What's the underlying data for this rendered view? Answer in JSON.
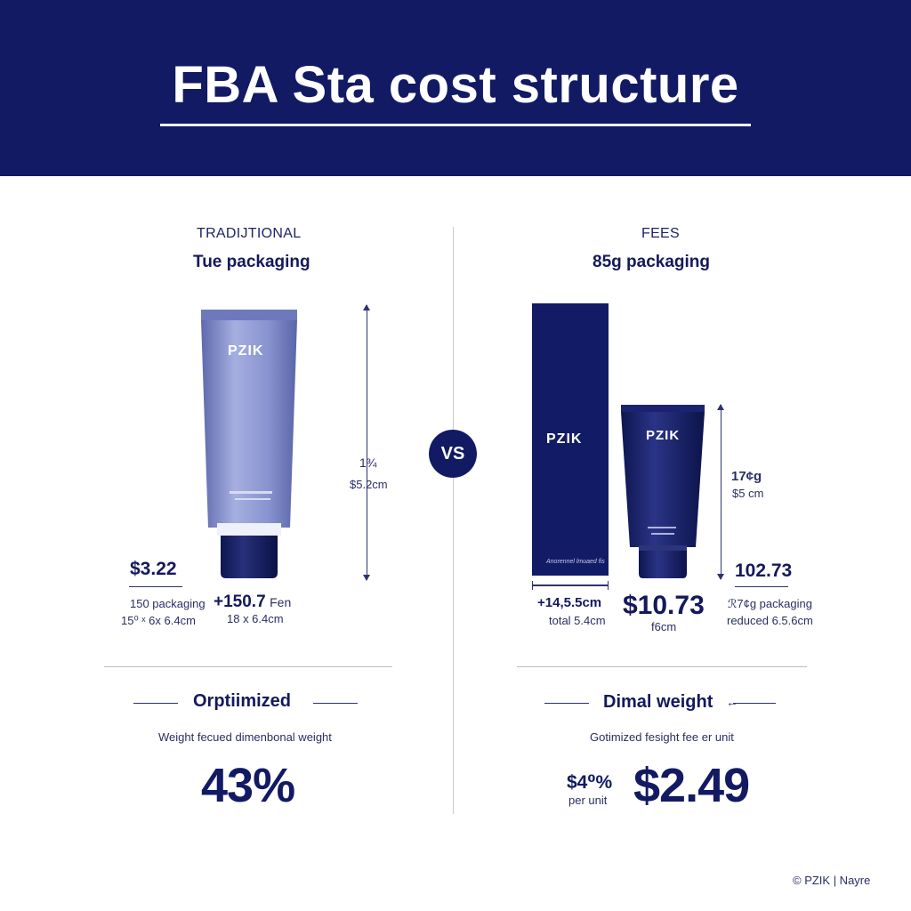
{
  "header": {
    "title": "FBA Sta cost structure"
  },
  "vs_label": "VS",
  "left": {
    "kicker": "TRADIJTIONAL",
    "subhead": "Tue packaging",
    "product_brand": "PZIK",
    "height_label": "1¾",
    "height_dim": "$5.2cm",
    "price": "$3.22",
    "price_note_1": "150 packaging",
    "price_note_2": "15⁰ ˣ 6x 6.4cm",
    "fee": "+150.7",
    "fee_suffix": "Fen",
    "fee_dim": "18 x 6.4cm",
    "section_title": "Orptiimized",
    "caption": "Weight fecued dimenbonal weight",
    "big_value": "43%"
  },
  "right": {
    "kicker": "FEES",
    "subhead": "85g packaging",
    "box_brand": "PZIK",
    "box_fine": "Anorennel lmuaed fis",
    "tube_brand": "PZIK",
    "height_label": "17¢g",
    "height_dim": "$5 cm",
    "box_dim": "+14,5.5cm",
    "box_dim_note": "total 5.4cm",
    "center_price": "$10.73",
    "center_note": "f6cm",
    "weight": "102.73",
    "weight_note_1": "ℛ7¢g packaging",
    "weight_note_2": "reduced 6.5.6cm",
    "section_title": "Dimal weight",
    "caption": "Gotimized fesight fee er unit",
    "small_value": "$4⁰%",
    "small_value_note": "per unit",
    "big_value": "$2.49"
  },
  "footer": {
    "credit": "© PZIK  |  Nayre"
  },
  "colors": {
    "navy": "#111a63",
    "tube_light": "#7f8bc8",
    "white": "#ffffff"
  }
}
